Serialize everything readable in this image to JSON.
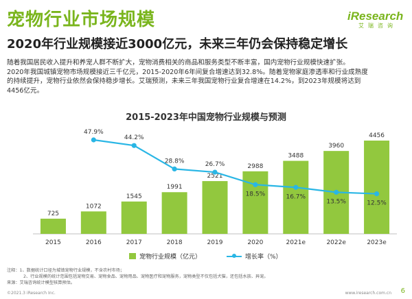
{
  "header": {
    "title": "宠物行业市场规模",
    "subtitle": "2020年行业规模接近3000亿元，未来三年仍会保持稳定增长",
    "logo_main_i": "i",
    "logo_main_rest": "Research",
    "logo_sub": "艾瑞咨询"
  },
  "paragraph": [
    "随着我国居民收入提升和养宠人群不断扩大，宠物消费相关的商品和服务类型不断丰富，国内宠物行业规模快速扩张。",
    "2020年我国城镇宠物市场规模接近三千亿元，2015-2020年6年间复合增速达到32.8%。随着宠物家庭渗透率和行业成熟度",
    "的持续提升，宠物行业依然会保持稳步增长。艾瑞预测，未来三年我国宠物行业复合增速在14.2%，到2023年规模将达到",
    "4456亿元。"
  ],
  "chart_data": {
    "type": "bar",
    "title": "2015-2023年中国宠物行业规模与预测",
    "categories": [
      "2015",
      "2016",
      "2017",
      "2018",
      "2019",
      "2020",
      "2021e",
      "2022e",
      "2023e"
    ],
    "series": [
      {
        "name": "宠物行业规模（亿元）",
        "type": "bar",
        "axis": "left",
        "color": "#92c83e",
        "values": [
          725,
          1072,
          1545,
          1991,
          2521,
          2988,
          3488,
          3960,
          4456
        ],
        "labels": [
          "725",
          "1072",
          "1545",
          "1991",
          "2521",
          "2988",
          "3488",
          "3960",
          "4456"
        ]
      },
      {
        "name": "增长率（%）",
        "type": "line",
        "axis": "right",
        "color": "#29b6e5",
        "values": [
          null,
          47.9,
          44.2,
          28.8,
          26.7,
          18.5,
          16.7,
          13.5,
          12.5
        ],
        "labels": [
          "",
          "47.9%",
          "44.2%",
          "28.8%",
          "26.7%",
          "18.5%",
          "16.7%",
          "13.5%",
          "12.5%"
        ]
      }
    ],
    "ylim_left": [
      0,
      5000
    ],
    "ylim_right": [
      0,
      100
    ],
    "grid": false,
    "legend_position": "bottom"
  },
  "legend": {
    "bar_label": "宠物行业规模（亿元）",
    "line_label": "增长率（%）"
  },
  "notes": [
    "注释：1、数据统计口径为城镇宠物行业规模，不含农村市场；",
    "2、行业规模的统计范围包括宠物交易、宠物食品、宠物用品、宠物医疗和宠物服务，宠物类型不仅包括犬猫，还包括水族、异宠。",
    "来源：艾瑞咨询统计模型核算预估。"
  ],
  "footer": {
    "copyright": "©2021.3 iResearch Inc.",
    "website": "www.iresearch.com.cn",
    "page": "6"
  }
}
